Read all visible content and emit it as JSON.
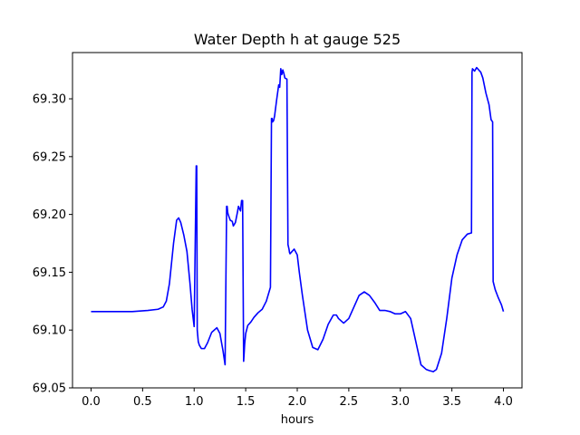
{
  "chart_data": {
    "type": "line",
    "title": "Water Depth h at gauge 525",
    "xlabel": "hours",
    "ylabel": "",
    "xlim": [
      -0.18,
      4.18
    ],
    "ylim": [
      69.05,
      69.34
    ],
    "xticks": [
      0.0,
      0.5,
      1.0,
      1.5,
      2.0,
      2.5,
      3.0,
      3.5,
      4.0
    ],
    "xtick_labels": [
      "0.0",
      "0.5",
      "1.0",
      "1.5",
      "2.0",
      "2.5",
      "3.0",
      "3.5",
      "4.0"
    ],
    "yticks": [
      69.05,
      69.1,
      69.15,
      69.2,
      69.25,
      69.3
    ],
    "ytick_labels": [
      "69.05",
      "69.10",
      "69.15",
      "69.20",
      "69.25",
      "69.30"
    ],
    "grid": false,
    "series": [
      {
        "name": "",
        "color": "#0000ff",
        "x": [
          0.0,
          0.2,
          0.4,
          0.55,
          0.65,
          0.7,
          0.73,
          0.76,
          0.8,
          0.83,
          0.85,
          0.87,
          0.9,
          0.93,
          0.96,
          0.98,
          1.0,
          1.02,
          1.025,
          1.03,
          1.035,
          1.04,
          1.05,
          1.07,
          1.1,
          1.13,
          1.17,
          1.22,
          1.25,
          1.28,
          1.3,
          1.315,
          1.32,
          1.325,
          1.33,
          1.35,
          1.37,
          1.38,
          1.4,
          1.42,
          1.43,
          1.45,
          1.46,
          1.47,
          1.48,
          1.485,
          1.49,
          1.5,
          1.52,
          1.55,
          1.58,
          1.62,
          1.66,
          1.7,
          1.74,
          1.75,
          1.755,
          1.76,
          1.77,
          1.78,
          1.8,
          1.82,
          1.83,
          1.84,
          1.85,
          1.86,
          1.87,
          1.88,
          1.9,
          1.91,
          1.92,
          1.925,
          1.93,
          1.95,
          1.97,
          2.0,
          2.02,
          2.05,
          2.1,
          2.15,
          2.2,
          2.25,
          2.3,
          2.35,
          2.38,
          2.4,
          2.45,
          2.5,
          2.55,
          2.6,
          2.65,
          2.7,
          2.75,
          2.8,
          2.85,
          2.9,
          2.95,
          3.0,
          3.05,
          3.1,
          3.15,
          3.2,
          3.25,
          3.28,
          3.32,
          3.35,
          3.4,
          3.45,
          3.5,
          3.55,
          3.6,
          3.65,
          3.69,
          3.695,
          3.7,
          3.72,
          3.74,
          3.76,
          3.78,
          3.8,
          3.83,
          3.86,
          3.88,
          3.895,
          3.9,
          3.92,
          3.95,
          3.98,
          4.0
        ],
        "values": [
          69.116,
          69.116,
          69.116,
          69.117,
          69.118,
          69.12,
          69.125,
          69.14,
          69.175,
          69.195,
          69.197,
          69.193,
          69.182,
          69.168,
          69.14,
          69.118,
          69.103,
          69.242,
          69.242,
          69.1,
          69.095,
          69.09,
          69.087,
          69.084,
          69.084,
          69.089,
          69.098,
          69.102,
          69.097,
          69.082,
          69.07,
          69.207,
          69.207,
          69.202,
          69.2,
          69.195,
          69.194,
          69.19,
          69.193,
          69.202,
          69.207,
          69.203,
          69.212,
          69.212,
          69.073,
          69.08,
          69.088,
          69.097,
          69.104,
          69.107,
          69.111,
          69.115,
          69.118,
          69.125,
          69.137,
          69.283,
          69.283,
          69.28,
          69.281,
          69.285,
          69.299,
          69.312,
          69.31,
          69.326,
          69.321,
          69.325,
          69.322,
          69.318,
          69.317,
          69.174,
          69.17,
          69.167,
          69.166,
          69.168,
          69.17,
          69.165,
          69.15,
          69.13,
          69.1,
          69.085,
          69.083,
          69.092,
          69.105,
          69.113,
          69.113,
          69.11,
          69.106,
          69.11,
          69.12,
          69.13,
          69.133,
          69.13,
          69.124,
          69.117,
          69.117,
          69.116,
          69.114,
          69.114,
          69.116,
          69.11,
          69.09,
          69.07,
          69.066,
          69.065,
          69.064,
          69.066,
          69.08,
          69.11,
          69.145,
          69.165,
          69.178,
          69.183,
          69.184,
          69.323,
          69.326,
          69.324,
          69.327,
          69.325,
          69.323,
          69.318,
          69.305,
          69.295,
          69.282,
          69.28,
          69.142,
          69.135,
          69.128,
          69.122,
          69.116
        ]
      }
    ]
  }
}
